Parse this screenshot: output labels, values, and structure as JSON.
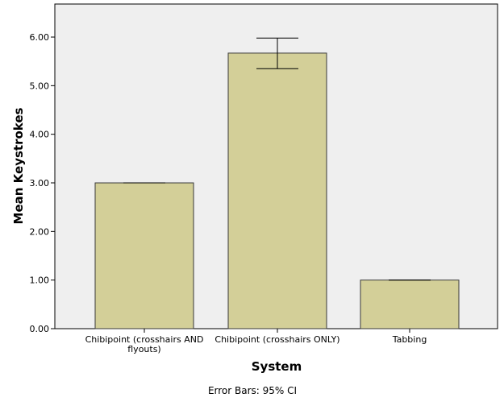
{
  "chart_data": {
    "type": "bar",
    "categories": [
      "Chibipoint (crosshairs AND flyouts)",
      "Chibipoint (crosshairs ONLY)",
      "Tabbing"
    ],
    "category_lines": [
      [
        "Chibipoint (crosshairs AND",
        "flyouts)"
      ],
      [
        "Chibipoint (crosshairs ONLY)"
      ],
      [
        "Tabbing"
      ]
    ],
    "values": [
      3.0,
      5.67,
      1.0
    ],
    "error_bars": [
      {
        "low": 3.0,
        "high": 3.0
      },
      {
        "low": 5.35,
        "high": 5.98
      },
      {
        "low": 1.0,
        "high": 1.0
      }
    ],
    "xlabel": "System",
    "ylabel": "Mean Keystrokes",
    "ylim": [
      0,
      6.5
    ],
    "yticks": [
      0,
      1,
      2,
      3,
      4,
      5,
      6
    ],
    "ytick_labels": [
      "0.00",
      "1.00",
      "2.00",
      "3.00",
      "4.00",
      "5.00",
      "6.00"
    ],
    "footnote": "Error Bars: 95% CI",
    "colors": {
      "bar_fill": "#d3cf98",
      "bar_stroke": "#3a3a3a",
      "plot_background": "#efefef",
      "axis": "#000000"
    }
  }
}
